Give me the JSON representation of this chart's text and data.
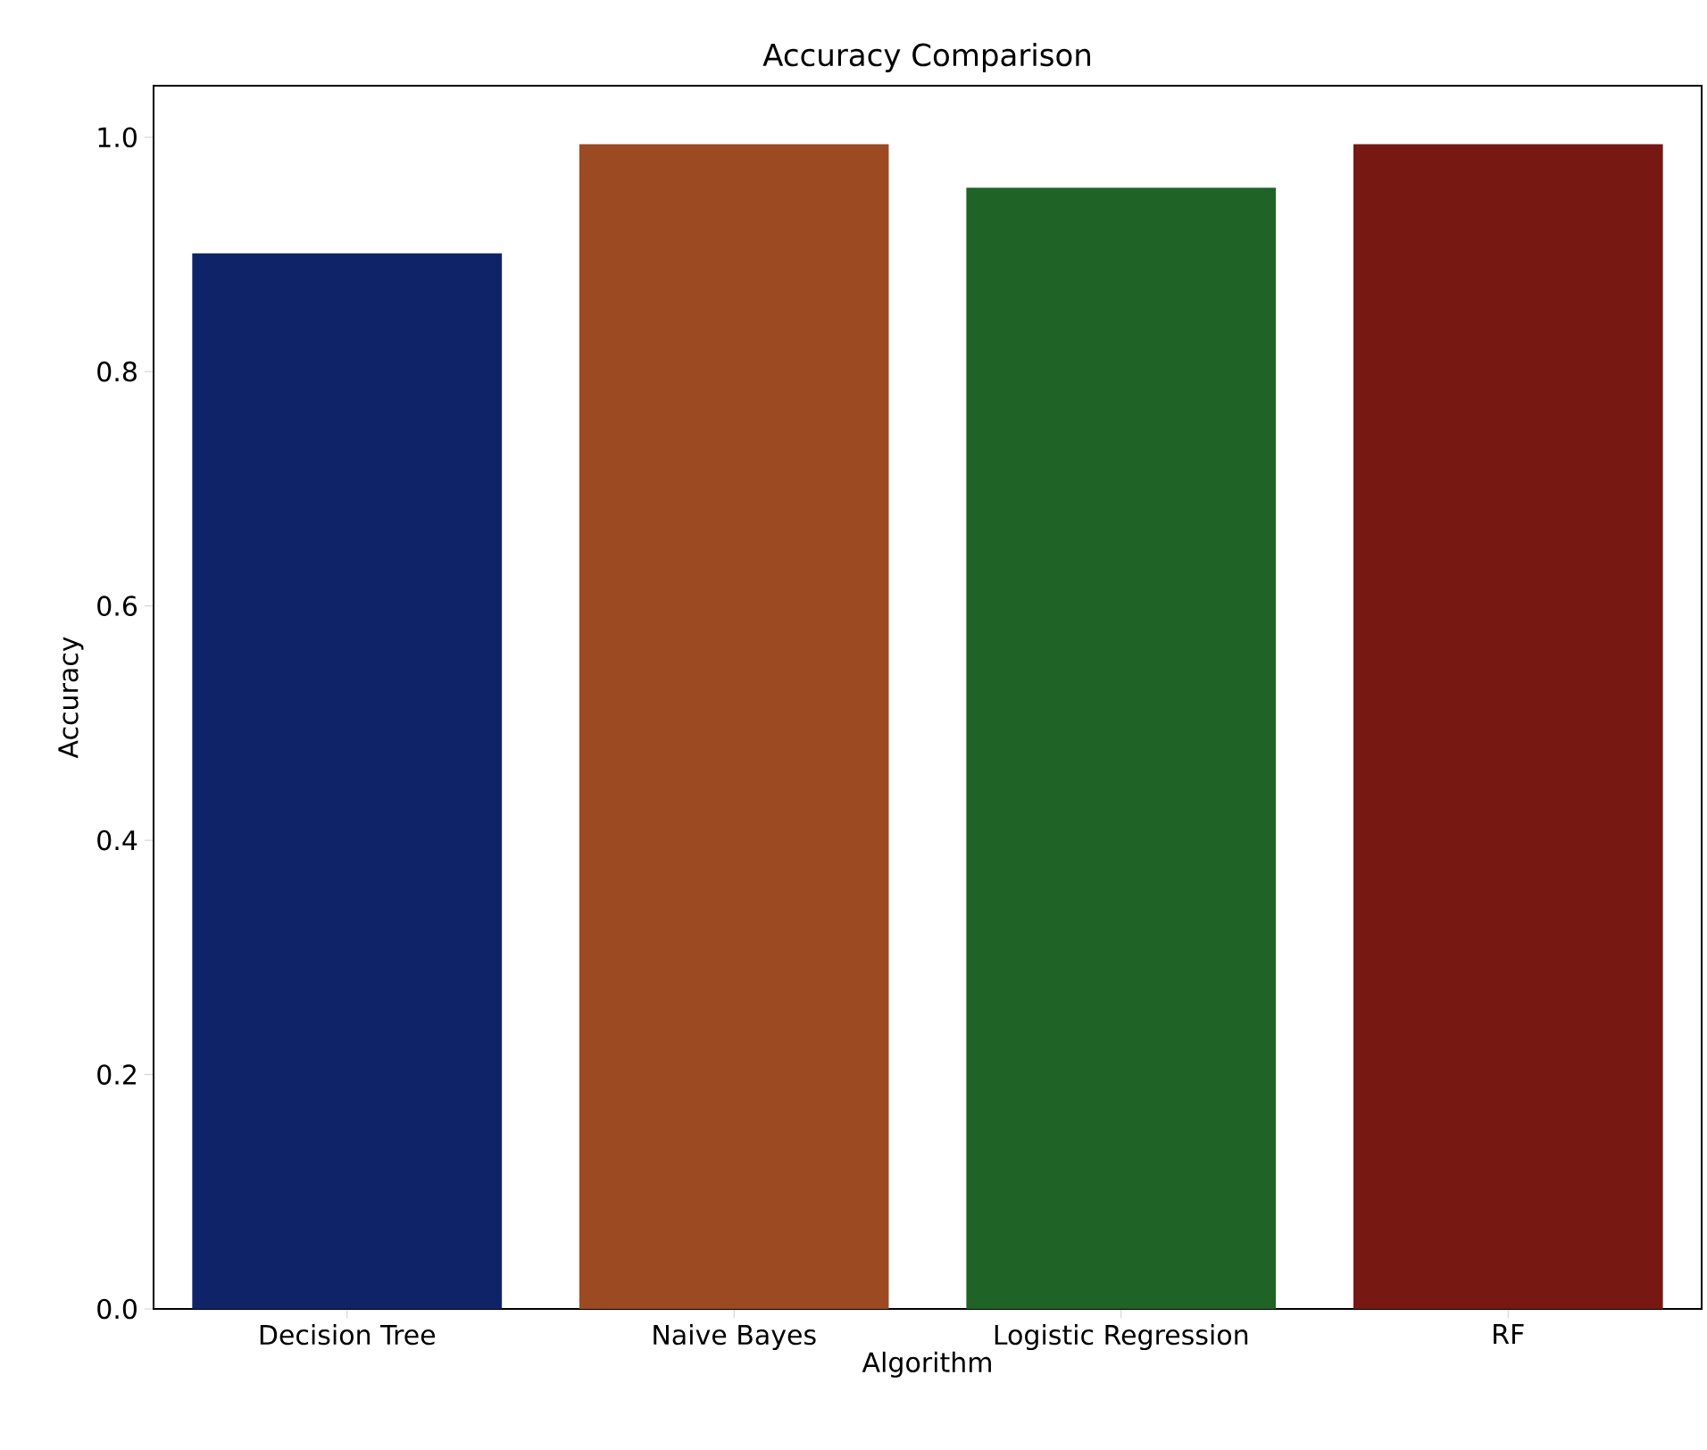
{
  "chart_data": {
    "type": "bar",
    "title": "Accuracy Comparison",
    "xlabel": "Algorithm",
    "ylabel": "Accuracy",
    "categories": [
      "Decision Tree",
      "Naive Bayes",
      "Logistic Regression",
      "RF"
    ],
    "values": [
      0.901,
      0.994,
      0.957,
      0.994
    ],
    "colors": [
      "#0f2368",
      "#9c4a22",
      "#1f6426",
      "#771812"
    ],
    "ylim": [
      0,
      1.044
    ],
    "yticks": [
      {
        "value": 0,
        "label": "0.0"
      },
      0.2,
      0.4,
      0.6,
      0.8,
      {
        "value": 1,
        "label": "1.0"
      }
    ]
  }
}
